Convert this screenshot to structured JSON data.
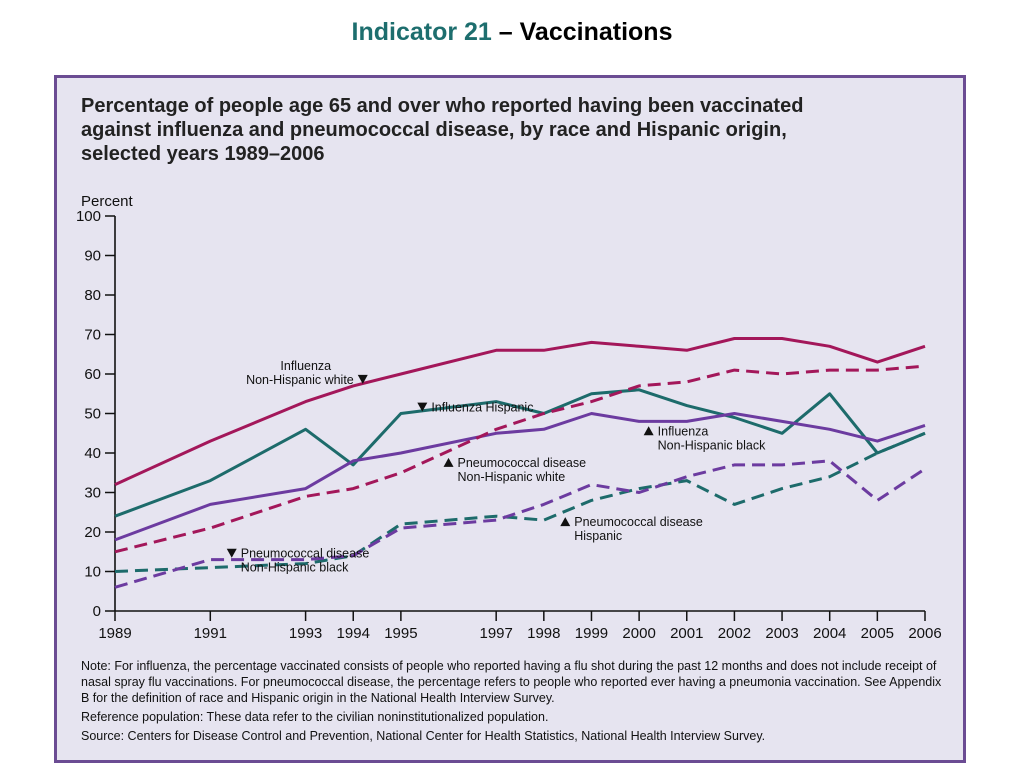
{
  "header": {
    "title_accent": "Indicator 21",
    "title_rest": " – Vaccinations"
  },
  "panel": {
    "title_lines": [
      "Percentage of people age 65 and over who reported having been vaccinated",
      "against influenza and pneumococcal disease, by race and Hispanic origin,",
      "selected years 1989–2006"
    ]
  },
  "chart_data": {
    "type": "line",
    "ylabel": "Percent",
    "ylim": [
      0,
      100
    ],
    "yticks": [
      0,
      10,
      20,
      30,
      40,
      50,
      60,
      70,
      80,
      90,
      100
    ],
    "xlim": [
      1989,
      2006
    ],
    "xticks": [
      1989,
      1991,
      1993,
      1994,
      1995,
      1997,
      1998,
      1999,
      2000,
      2001,
      2002,
      2003,
      2004,
      2005,
      2006
    ],
    "series": [
      {
        "name": "Influenza Non-Hispanic white",
        "color": "#a3175a",
        "dash": "solid",
        "x": [
          1989,
          1991,
          1993,
          1994,
          1995,
          1997,
          1998,
          1999,
          2000,
          2001,
          2002,
          2003,
          2004,
          2005,
          2006
        ],
        "y": [
          32,
          43,
          53,
          57,
          60,
          66,
          66,
          68,
          67,
          66,
          69,
          69,
          67,
          63,
          67
        ]
      },
      {
        "name": "Influenza Hispanic",
        "color": "#1d6b6b",
        "dash": "solid",
        "x": [
          1989,
          1991,
          1993,
          1994,
          1995,
          1997,
          1998,
          1999,
          2000,
          2001,
          2002,
          2003,
          2004,
          2005,
          2006
        ],
        "y": [
          24,
          33,
          46,
          37,
          50,
          53,
          50,
          55,
          56,
          52,
          49,
          45,
          55,
          40,
          45
        ]
      },
      {
        "name": "Influenza Non-Hispanic black",
        "color": "#6c3ba0",
        "dash": "solid",
        "x": [
          1989,
          1991,
          1993,
          1994,
          1995,
          1997,
          1998,
          1999,
          2000,
          2001,
          2002,
          2003,
          2004,
          2005,
          2006
        ],
        "y": [
          18,
          27,
          31,
          38,
          40,
          45,
          46,
          50,
          48,
          48,
          50,
          48,
          46,
          43,
          47
        ]
      },
      {
        "name": "Pneumococcal disease Non-Hispanic white",
        "color": "#a3175a",
        "dash": "dashed",
        "x": [
          1989,
          1991,
          1993,
          1994,
          1995,
          1997,
          1998,
          1999,
          2000,
          2001,
          2002,
          2003,
          2004,
          2005,
          2006
        ],
        "y": [
          15,
          21,
          29,
          31,
          35,
          46,
          50,
          53,
          57,
          58,
          61,
          60,
          61,
          61,
          62
        ]
      },
      {
        "name": "Pneumococcal disease Hispanic",
        "color": "#1d6b6b",
        "dash": "dashed",
        "x": [
          1989,
          1991,
          1993,
          1994,
          1995,
          1997,
          1998,
          1999,
          2000,
          2001,
          2002,
          2003,
          2004,
          2005,
          2006
        ],
        "y": [
          10,
          11,
          12,
          14,
          22,
          24,
          23,
          28,
          31,
          33,
          27,
          31,
          34,
          40,
          45
        ]
      },
      {
        "name": "Pneumococcal disease Non-Hispanic black",
        "color": "#6c3ba0",
        "dash": "dashed",
        "x": [
          1989,
          1991,
          1993,
          1994,
          1995,
          1997,
          1998,
          1999,
          2000,
          2001,
          2002,
          2003,
          2004,
          2005,
          2006
        ],
        "y": [
          6,
          13,
          13,
          14,
          21,
          23,
          27,
          32,
          30,
          34,
          37,
          37,
          38,
          28,
          36
        ]
      }
    ],
    "annotations": [
      {
        "lines": [
          "Influenza",
          "Non-Hispanic white"
        ],
        "arrow": "down",
        "x": 1994.2,
        "y": 58.5,
        "text_side": "left"
      },
      {
        "lines": [
          "Influenza Hispanic"
        ],
        "arrow": "down",
        "x": 1995.45,
        "y": 51.5,
        "text_side": "right"
      },
      {
        "lines": [
          "Influenza",
          "Non-Hispanic black"
        ],
        "arrow": "up",
        "x": 2000.2,
        "y": 45.5,
        "text_side": "right"
      },
      {
        "lines": [
          "Pneumococcal disease",
          "Non-Hispanic white"
        ],
        "arrow": "up",
        "x": 1996.0,
        "y": 37.5,
        "text_side": "right"
      },
      {
        "lines": [
          "Pneumococcal disease",
          "Hispanic"
        ],
        "arrow": "up",
        "x": 1998.45,
        "y": 22.5,
        "text_side": "right"
      },
      {
        "lines": [
          "Pneumococcal disease",
          "Non-Hispanic black"
        ],
        "arrow": "down",
        "x": 1991.45,
        "y": 14.5,
        "text_side": "right"
      }
    ]
  },
  "notes": {
    "note": "Note: For influenza, the percentage vaccinated consists of people who reported having a  flu shot during the past 12 months and does not include receipt of nasal spray flu vaccinations. For pneumococcal disease, the percentage refers  to people who reported ever having a pneumonia vaccination. See Appendix B for the definition of race and Hispanic origin in the National Health Interview Survey.",
    "reference": "Reference population: These data refer to the civilian noninstitutionalized population.",
    "source": "Source:  Centers for Disease Control and Prevention, National Center for Health Statistics, National Health Interview Survey."
  }
}
